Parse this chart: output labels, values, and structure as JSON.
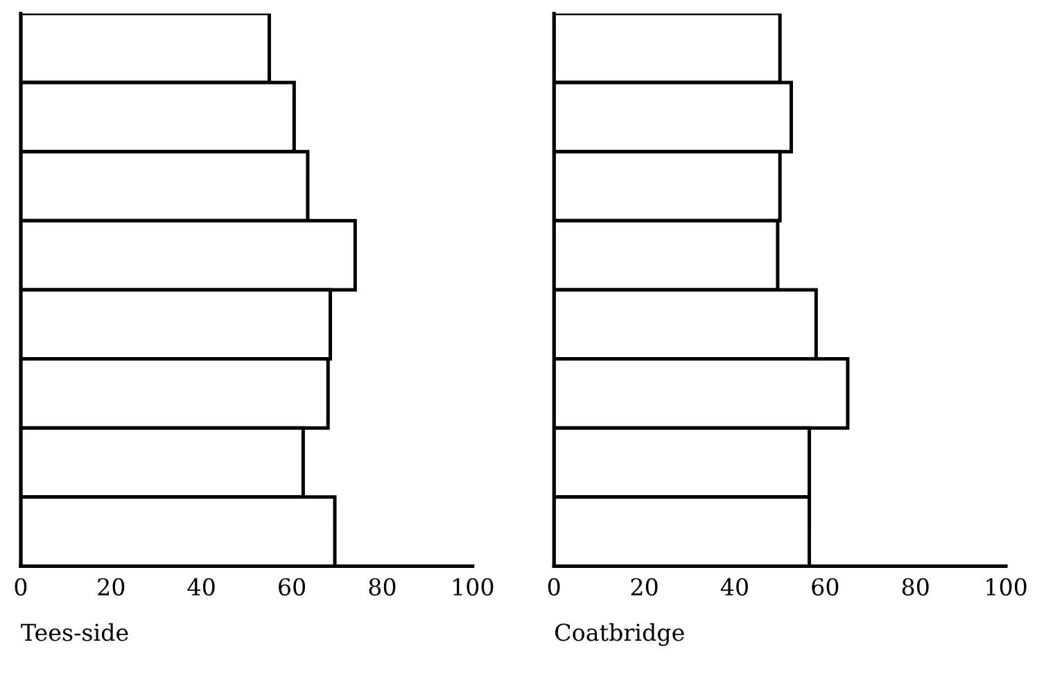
{
  "chart_data": [
    {
      "type": "bar",
      "orientation": "horizontal",
      "xlabel": "Tees-side",
      "categories": [
        null,
        null,
        null,
        null,
        null,
        null,
        null,
        null
      ],
      "values": [
        55,
        60.5,
        63.5,
        74,
        68.5,
        68,
        62.5,
        69.5
      ],
      "color": "#ffffff",
      "xlim": [
        0,
        100
      ],
      "xticks": [
        0,
        20,
        40,
        60,
        80,
        100
      ],
      "tick_labels": "x",
      "grid": false
    },
    {
      "type": "bar",
      "orientation": "horizontal",
      "xlabel": "Coatbridge",
      "categories": [
        null,
        null,
        null,
        null,
        null,
        null,
        null,
        null
      ],
      "values": [
        50,
        52.5,
        50,
        49.5,
        58,
        65,
        56.5,
        56.5
      ],
      "color": "#ffffff",
      "xlim": [
        0,
        100
      ],
      "xticks": [
        0,
        20,
        40,
        60,
        80,
        100
      ],
      "tick_labels": "x",
      "grid": false
    }
  ]
}
